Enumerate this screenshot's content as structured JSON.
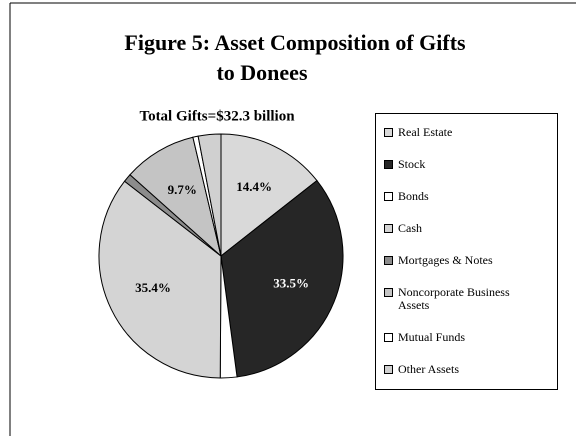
{
  "chart_data": {
    "type": "pie",
    "title": [
      "Figure 5:  Asset Composition of Gifts",
      "to Donees"
    ],
    "subtitle": "Total Gifts=$32.3 billion",
    "categories": [
      "Real Estate",
      "Stock",
      "Bonds",
      "Cash",
      "Mortgages & Notes",
      "Noncorporate Business Assets",
      "Mutual Funds",
      "Other Assets"
    ],
    "values": [
      14.4,
      33.5,
      2.2,
      35.4,
      1.1,
      9.7,
      0.7,
      3.0
    ],
    "value_labels": [
      "14.4%",
      "33.5%",
      null,
      "35.4%",
      null,
      "9.7%",
      null,
      null
    ],
    "colors": [
      "#d9d9d9",
      "#262626",
      "#ffffff",
      "#d4d4d4",
      "#8c8c8c",
      "#c4c4c4",
      "#ffffff",
      "#d0d0d0"
    ],
    "legend": "right"
  }
}
